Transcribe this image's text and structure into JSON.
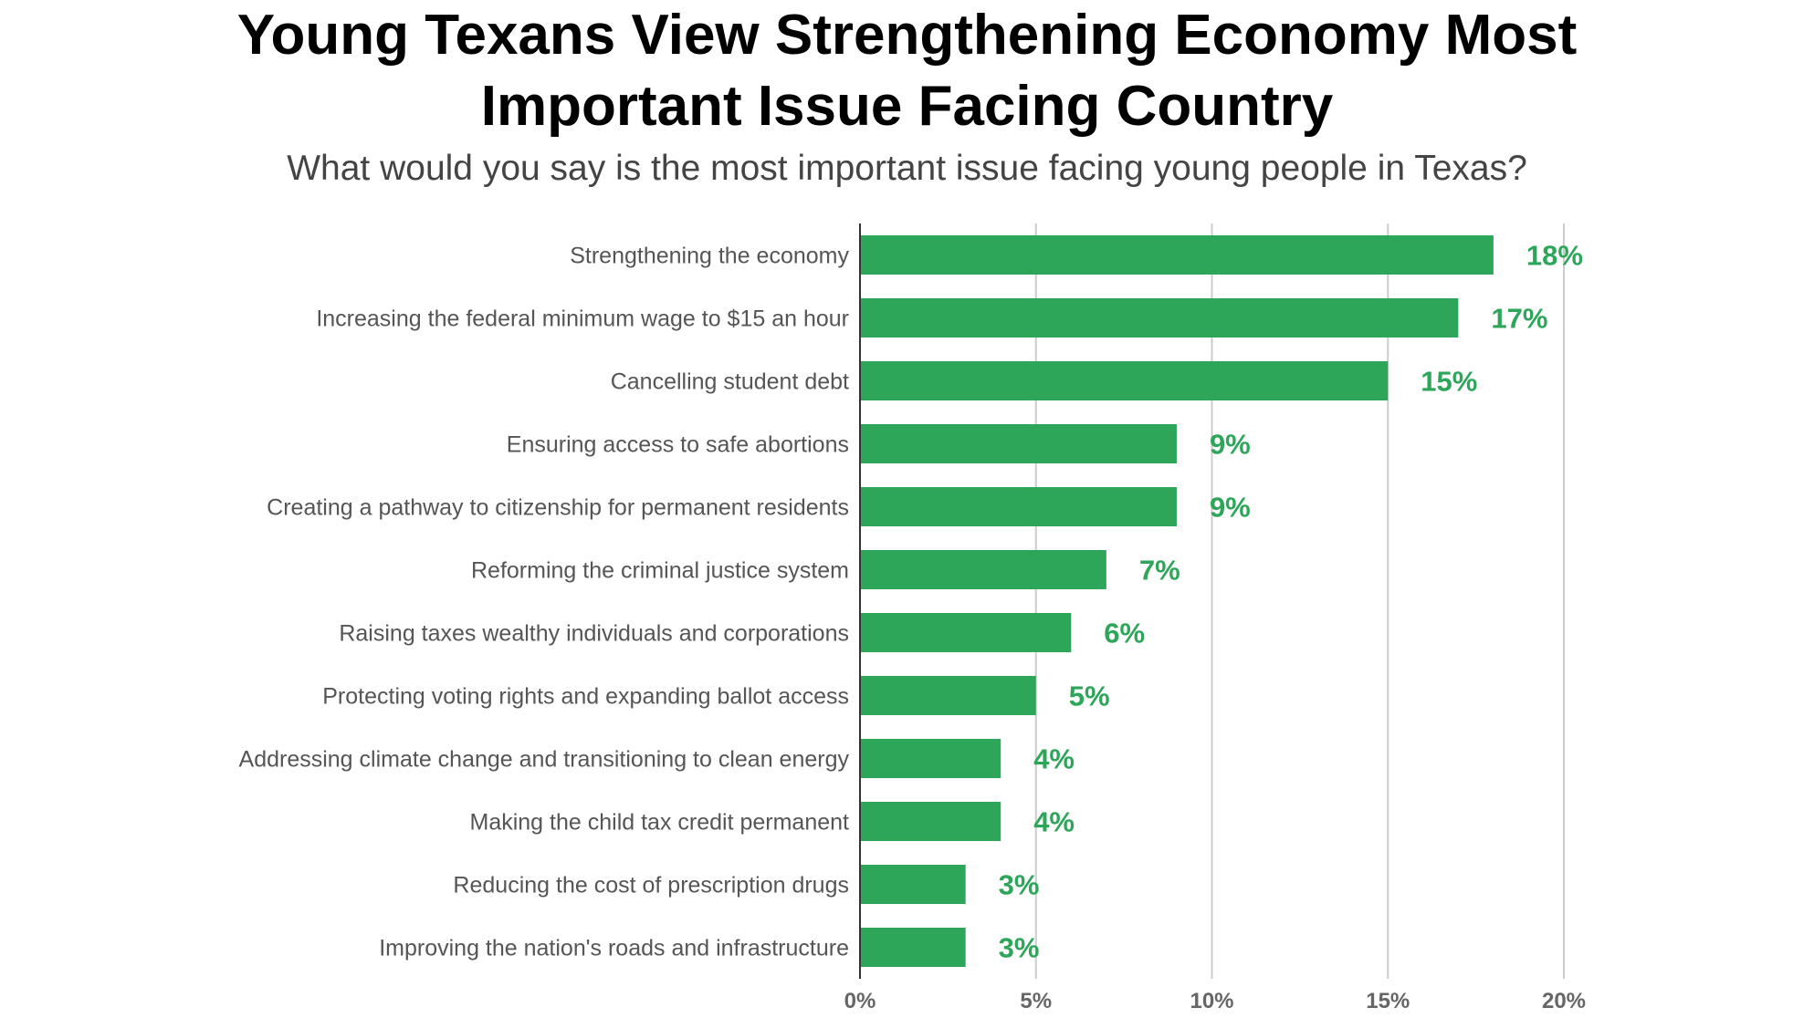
{
  "title_line1": "Young Texans View Strengthening Economy Most",
  "title_line2": "Important Issue Facing Country",
  "subtitle": "What would you say is the most important issue facing young people in Texas?",
  "colors": {
    "bar": "#2ea65a",
    "value_label": "#2ea65a",
    "gridline": "#cccccc",
    "axis": "#333333"
  },
  "chart_data": {
    "type": "bar",
    "orientation": "horizontal",
    "title": "Young Texans View Strengthening Economy Most Important Issue Facing Country",
    "subtitle": "What would you say is the most important issue facing young people in Texas?",
    "categories": [
      "Strengthening the economy",
      "Increasing the federal minimum wage to $15 an hour",
      "Cancelling student debt",
      "Ensuring access to safe abortions",
      "Creating a pathway to citizenship for permanent residents",
      "Reforming the criminal justice system",
      "Raising taxes wealthy individuals and corporations",
      "Protecting voting rights and expanding ballot access",
      "Addressing climate change and transitioning to clean energy",
      "Making the child tax credit permanent",
      "Reducing the cost of prescription drugs",
      "Improving the nation's roads and infrastructure"
    ],
    "values": [
      18,
      17,
      15,
      9,
      9,
      7,
      6,
      5,
      4,
      4,
      3,
      3
    ],
    "value_labels": [
      "18%",
      "17%",
      "15%",
      "9%",
      "9%",
      "7%",
      "6%",
      "5%",
      "4%",
      "4%",
      "3%",
      "3%"
    ],
    "xlim": [
      0,
      20
    ],
    "xticks": [
      0,
      5,
      10,
      15,
      20
    ],
    "xtick_labels": [
      "0%",
      "5%",
      "10%",
      "15%",
      "20%"
    ],
    "grid": "vertical",
    "xlabel": "",
    "ylabel": ""
  }
}
